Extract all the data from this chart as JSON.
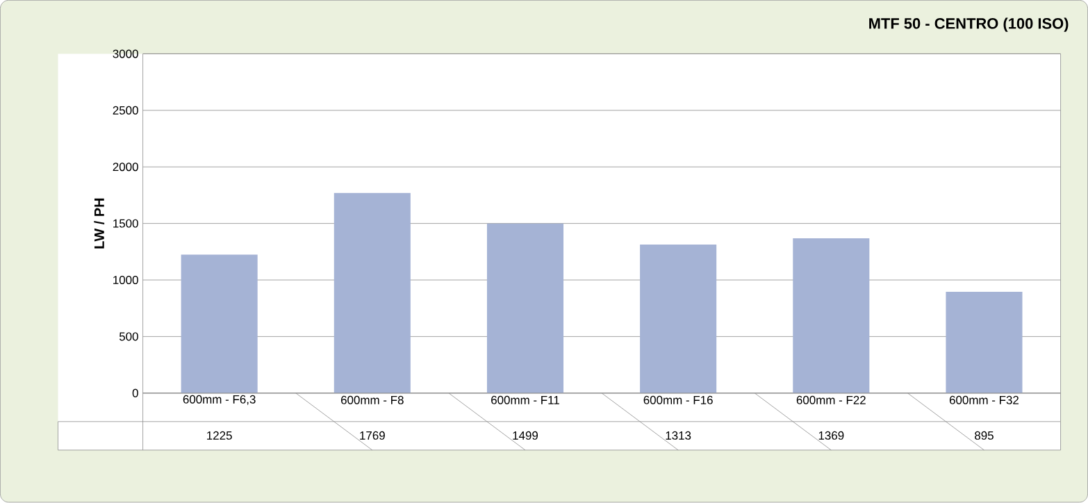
{
  "chart_data": {
    "type": "bar",
    "title": "MTF 50 - CENTRO (100 ISO)",
    "ylabel": "LW / PH",
    "categories": [
      "600mm - F6,3",
      "600mm - F8",
      "600mm - F11",
      "600mm - F16",
      "600mm - F22",
      "600mm - F32"
    ],
    "values": [
      1225,
      1769,
      1499,
      1313,
      1369,
      895
    ],
    "color": "#a5b3d5",
    "ylim": [
      0,
      3000
    ],
    "yticks": [
      0,
      500,
      1000,
      1500,
      2000,
      2500,
      3000
    ],
    "grid": "y",
    "data_labels": true
  }
}
